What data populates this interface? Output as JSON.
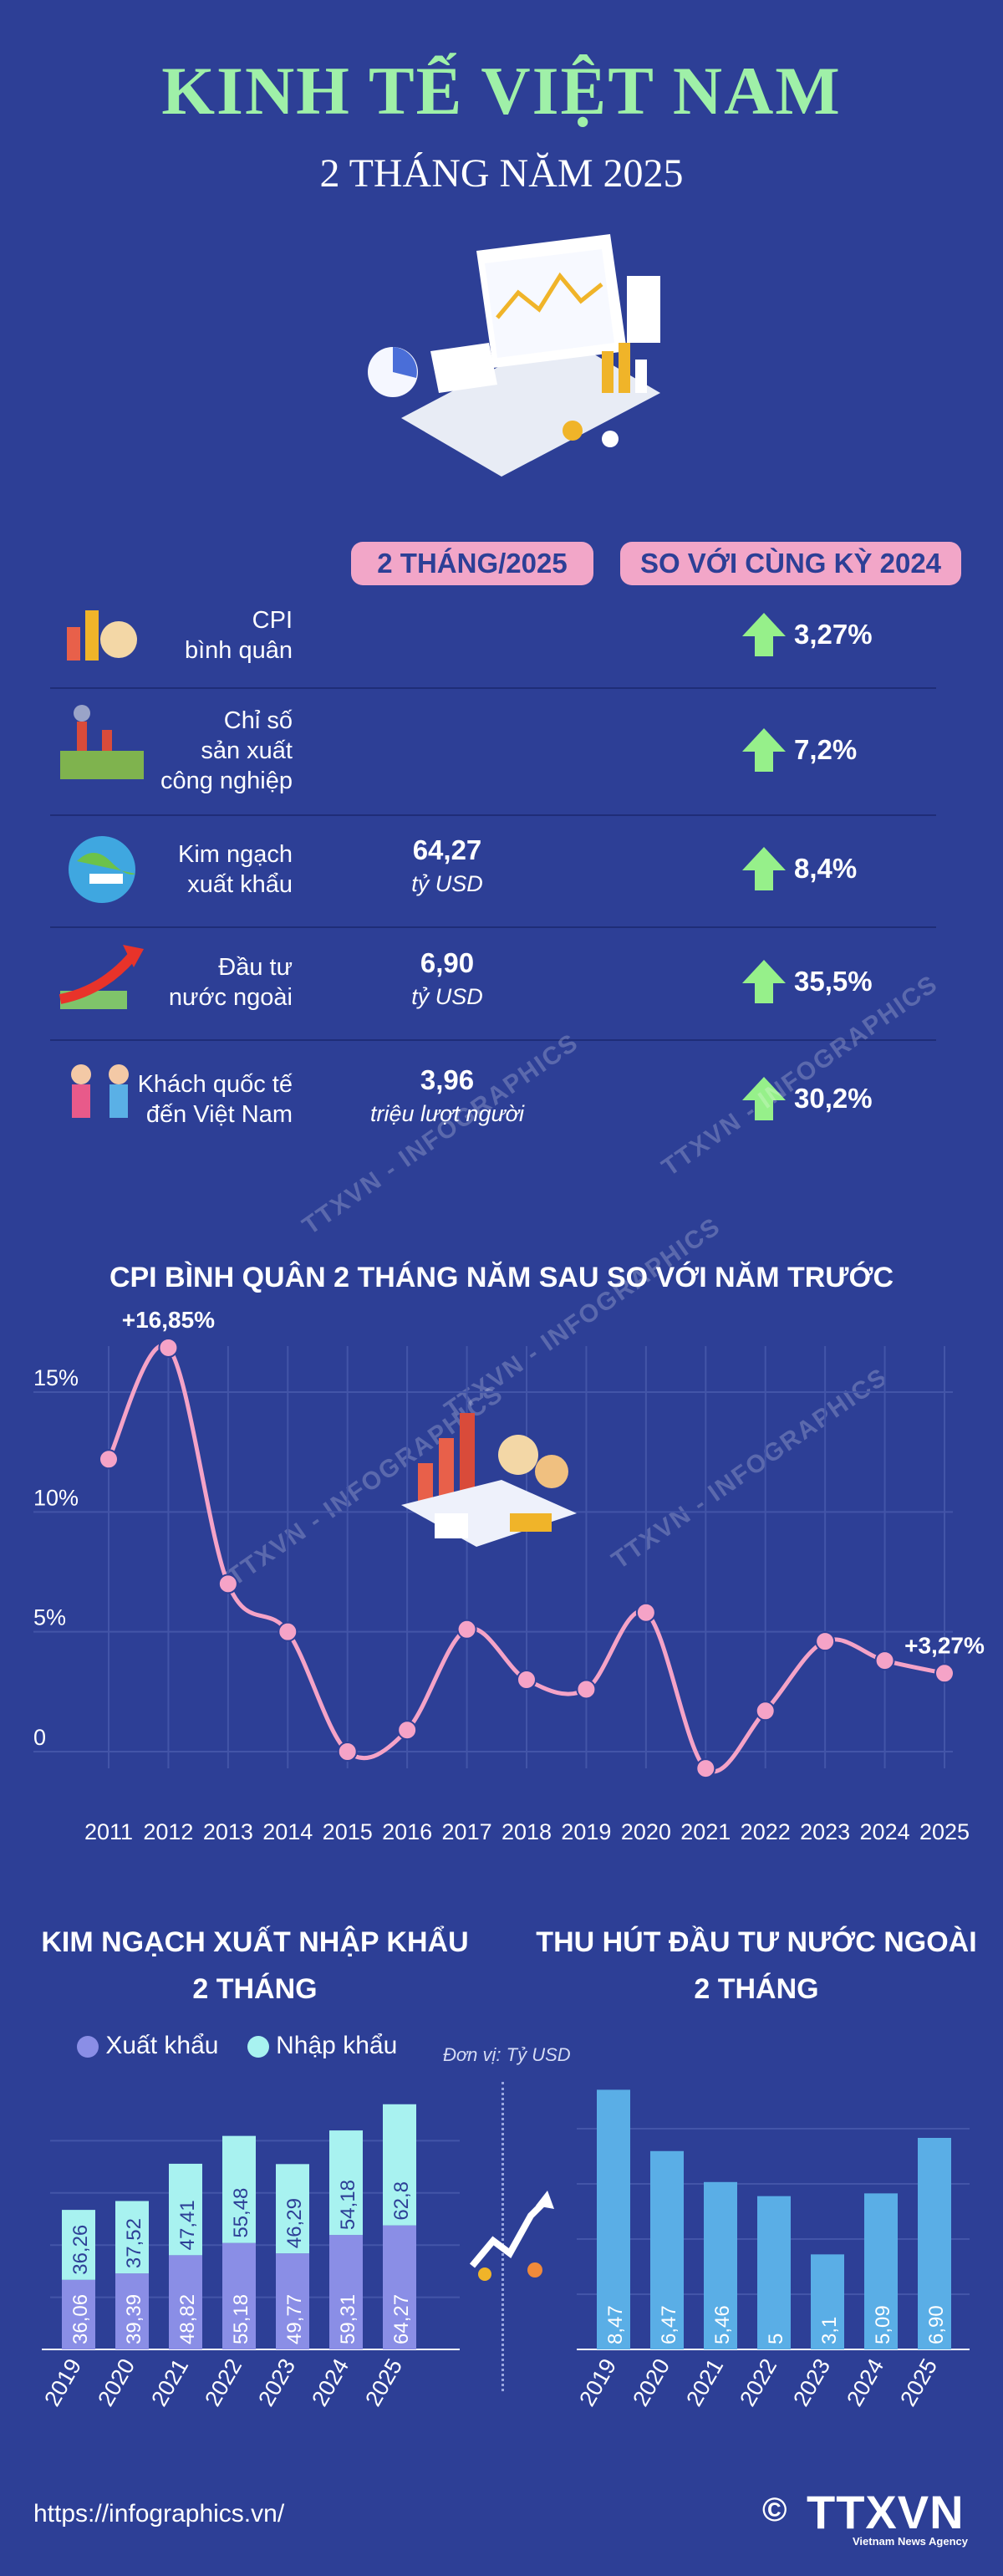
{
  "header": {
    "title": "KINH TẾ VIỆT NAM",
    "subtitle": "2 THÁNG NĂM 2025"
  },
  "table": {
    "col_period": "2 THÁNG/2025",
    "col_change": "SO VỚI CÙNG KỲ 2024",
    "rows": [
      {
        "label_lines": [
          "CPI",
          "bình quân"
        ],
        "value": "",
        "unit": "",
        "change": "3,27%",
        "icon": "cpi-icon"
      },
      {
        "label_lines": [
          "Chỉ số",
          "sản xuất",
          "công nghiệp"
        ],
        "value": "",
        "unit": "",
        "change": "7,2%",
        "icon": "factory-icon"
      },
      {
        "label_lines": [
          "Kim ngạch",
          "xuất khẩu"
        ],
        "value": "64,27",
        "unit": "tỷ USD",
        "change": "8,4%",
        "icon": "globe-icon"
      },
      {
        "label_lines": [
          "Đầu tư",
          "nước ngoài"
        ],
        "value": "6,90",
        "unit": "tỷ USD",
        "change": "35,5%",
        "icon": "investment-icon"
      },
      {
        "label_lines": [
          "Khách quốc tế",
          "đến Việt Nam"
        ],
        "value": "3,96",
        "unit": "triệu lượt người",
        "change": "30,2%",
        "icon": "tourists-icon"
      }
    ]
  },
  "watermark": "TTXVN - INFOGRAPHICS",
  "chart_data": [
    {
      "type": "line",
      "title": "CPI BÌNH QUÂN 2 THÁNG NĂM SAU SO VỚI NĂM TRƯỚC",
      "x": [
        "2011",
        "2012",
        "2013",
        "2014",
        "2015",
        "2016",
        "2017",
        "2018",
        "2019",
        "2020",
        "2021",
        "2022",
        "2023",
        "2024",
        "2025"
      ],
      "values": [
        12.2,
        16.85,
        7.0,
        5.0,
        0.0,
        0.9,
        5.1,
        3.0,
        2.6,
        5.8,
        -0.7,
        1.7,
        4.6,
        3.8,
        3.27
      ],
      "ylim": [
        -1,
        20
      ],
      "yticks": [
        0,
        5,
        10,
        15
      ],
      "ytick_labels": [
        "0",
        "5%",
        "10%",
        "15%"
      ],
      "annotations": [
        {
          "index": 1,
          "text": "+16,85%"
        },
        {
          "index": 14,
          "text": "+3,27%"
        }
      ],
      "colors": {
        "line": "#f5a3c7",
        "marker": "#f5a3c7",
        "grid": "#4355a8"
      }
    },
    {
      "type": "bar",
      "title_lines": [
        "KIM NGẠCH XUẤT NHẬP KHẨU",
        "2 THÁNG"
      ],
      "stacked": true,
      "categories": [
        "2019",
        "2020",
        "2021",
        "2022",
        "2023",
        "2024",
        "2025"
      ],
      "series": [
        {
          "name": "Xuất khẩu",
          "values": [
            36.06,
            39.39,
            48.82,
            55.18,
            49.77,
            59.31,
            64.27
          ],
          "labels": [
            "36,06",
            "39,39",
            "48,82",
            "55,18",
            "49,77",
            "59,31",
            "64,27"
          ],
          "color": "#8a8ee6"
        },
        {
          "name": "Nhập khẩu",
          "values": [
            36.26,
            37.52,
            47.41,
            55.48,
            46.29,
            54.18,
            62.8
          ],
          "labels": [
            "36,26",
            "37,52",
            "47,41",
            "55,48",
            "46,29",
            "54,18",
            "62,8"
          ],
          "color": "#a8f2f0"
        }
      ],
      "ylim": [
        0,
        130
      ]
    },
    {
      "type": "bar",
      "title_lines": [
        "THU HÚT ĐẦU TƯ NƯỚC NGOÀI",
        "2 THÁNG"
      ],
      "categories": [
        "2019",
        "2020",
        "2021",
        "2022",
        "2023",
        "2024",
        "2025"
      ],
      "values": [
        8.47,
        6.47,
        5.46,
        5.0,
        3.1,
        5.09,
        6.9
      ],
      "labels": [
        "8,47",
        "6,47",
        "5,46",
        "5",
        "3,1",
        "5,09",
        "6,90"
      ],
      "ylim": [
        0,
        9
      ],
      "color": "#5aaee6"
    }
  ],
  "unit_note": "Đơn vị: Tỷ USD",
  "footer": {
    "url": "https://infographics.vn/",
    "copyright": "©",
    "brand": "TTXVN",
    "brand_sub": "Vietnam News Agency"
  }
}
